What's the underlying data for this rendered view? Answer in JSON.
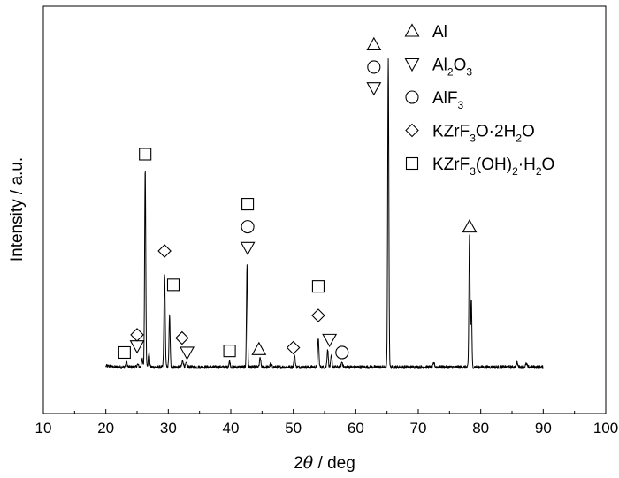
{
  "chart_data": {
    "type": "line",
    "xlabel_prefix": "2",
    "xlabel_theta": "θ",
    "xlabel_suffix": " / deg",
    "ylabel": "Intensity / a.u.",
    "xlim": [
      10,
      100
    ],
    "x_ticks": [
      "10",
      "20",
      "30",
      "40",
      "50",
      "60",
      "70",
      "80",
      "90",
      "100"
    ],
    "ylim": [
      0,
      100
    ],
    "series": [
      {
        "x_range": [
          20,
          90
        ],
        "baseline": 4.0,
        "peaks": [
          {
            "x": 23.3,
            "h": 1.5,
            "w": 0.12
          },
          {
            "x": 25.1,
            "h": 0.8,
            "w": 0.12
          },
          {
            "x": 25.8,
            "h": 2.5,
            "w": 0.1
          },
          {
            "x": 26.3,
            "h": 62,
            "w": 0.09
          },
          {
            "x": 26.9,
            "h": 4.5,
            "w": 0.1
          },
          {
            "x": 29.4,
            "h": 29,
            "w": 0.1
          },
          {
            "x": 30.2,
            "h": 16,
            "w": 0.09
          },
          {
            "x": 32.3,
            "h": 2.0,
            "w": 0.12
          },
          {
            "x": 32.9,
            "h": 1.2,
            "w": 0.12
          },
          {
            "x": 39.8,
            "h": 1.8,
            "w": 0.1
          },
          {
            "x": 42.6,
            "h": 32,
            "w": 0.09
          },
          {
            "x": 44.7,
            "h": 2.8,
            "w": 0.1
          },
          {
            "x": 46.4,
            "h": 1.0,
            "w": 0.12
          },
          {
            "x": 50.2,
            "h": 3.8,
            "w": 0.1
          },
          {
            "x": 54.0,
            "h": 9.0,
            "w": 0.1
          },
          {
            "x": 55.5,
            "h": 5.5,
            "w": 0.1
          },
          {
            "x": 56.1,
            "h": 3.5,
            "w": 0.1
          },
          {
            "x": 57.8,
            "h": 1.5,
            "w": 0.12
          },
          {
            "x": 65.2,
            "h": 96,
            "w": 0.09
          },
          {
            "x": 72.5,
            "h": 1.2,
            "w": 0.12
          },
          {
            "x": 78.2,
            "h": 41,
            "w": 0.09
          },
          {
            "x": 78.5,
            "h": 21,
            "w": 0.08
          },
          {
            "x": 85.8,
            "h": 1.3,
            "w": 0.12
          },
          {
            "x": 87.3,
            "h": 1.0,
            "w": 0.12
          }
        ]
      }
    ],
    "annotations": [
      {
        "x": 23.0,
        "y": 8.5,
        "marker": "square"
      },
      {
        "x": 25.0,
        "y": 14.0,
        "marker": "diamond"
      },
      {
        "x": 25.0,
        "y": 10.5,
        "marker": "triangle-down"
      },
      {
        "x": 26.3,
        "y": 70.0,
        "marker": "square"
      },
      {
        "x": 29.4,
        "y": 40.0,
        "marker": "diamond"
      },
      {
        "x": 30.8,
        "y": 29.5,
        "marker": "square"
      },
      {
        "x": 32.2,
        "y": 13.0,
        "marker": "diamond"
      },
      {
        "x": 33.0,
        "y": 8.5,
        "marker": "triangle-down"
      },
      {
        "x": 39.8,
        "y": 9.0,
        "marker": "square"
      },
      {
        "x": 42.7,
        "y": 54.5,
        "marker": "square"
      },
      {
        "x": 42.7,
        "y": 47.5,
        "marker": "circle"
      },
      {
        "x": 42.7,
        "y": 41.0,
        "marker": "triangle-down"
      },
      {
        "x": 44.5,
        "y": 9.5,
        "marker": "triangle-up"
      },
      {
        "x": 50.0,
        "y": 10.0,
        "marker": "diamond"
      },
      {
        "x": 54.0,
        "y": 29.0,
        "marker": "square"
      },
      {
        "x": 54.0,
        "y": 20.0,
        "marker": "diamond"
      },
      {
        "x": 55.8,
        "y": 12.5,
        "marker": "triangle-down"
      },
      {
        "x": 57.8,
        "y": 8.5,
        "marker": "circle"
      },
      {
        "x": 62.9,
        "y": 104.0,
        "marker": "triangle-up"
      },
      {
        "x": 62.9,
        "y": 97.0,
        "marker": "circle"
      },
      {
        "x": 62.9,
        "y": 90.5,
        "marker": "triangle-down"
      },
      {
        "x": 78.2,
        "y": 47.5,
        "marker": "triangle-up"
      }
    ],
    "legend": {
      "placement": "top-right",
      "entries": [
        {
          "marker": "triangle-up",
          "parts": [
            {
              "t": "Al"
            }
          ]
        },
        {
          "marker": "triangle-down",
          "parts": [
            {
              "t": "Al"
            },
            {
              "t": "2",
              "sub": true
            },
            {
              "t": "O"
            },
            {
              "t": "3",
              "sub": true
            }
          ]
        },
        {
          "marker": "circle",
          "parts": [
            {
              "t": "AlF"
            },
            {
              "t": "3",
              "sub": true
            }
          ]
        },
        {
          "marker": "diamond",
          "parts": [
            {
              "t": "KZrF"
            },
            {
              "t": "3",
              "sub": true
            },
            {
              "t": "O·2H"
            },
            {
              "t": "2",
              "sub": true
            },
            {
              "t": "O"
            }
          ]
        },
        {
          "marker": "square",
          "parts": [
            {
              "t": "KZrF"
            },
            {
              "t": "3",
              "sub": true
            },
            {
              "t": "(OH)"
            },
            {
              "t": "2",
              "sub": true
            },
            {
              "t": "·H"
            },
            {
              "t": "2",
              "sub": true
            },
            {
              "t": "O"
            }
          ]
        }
      ]
    }
  }
}
